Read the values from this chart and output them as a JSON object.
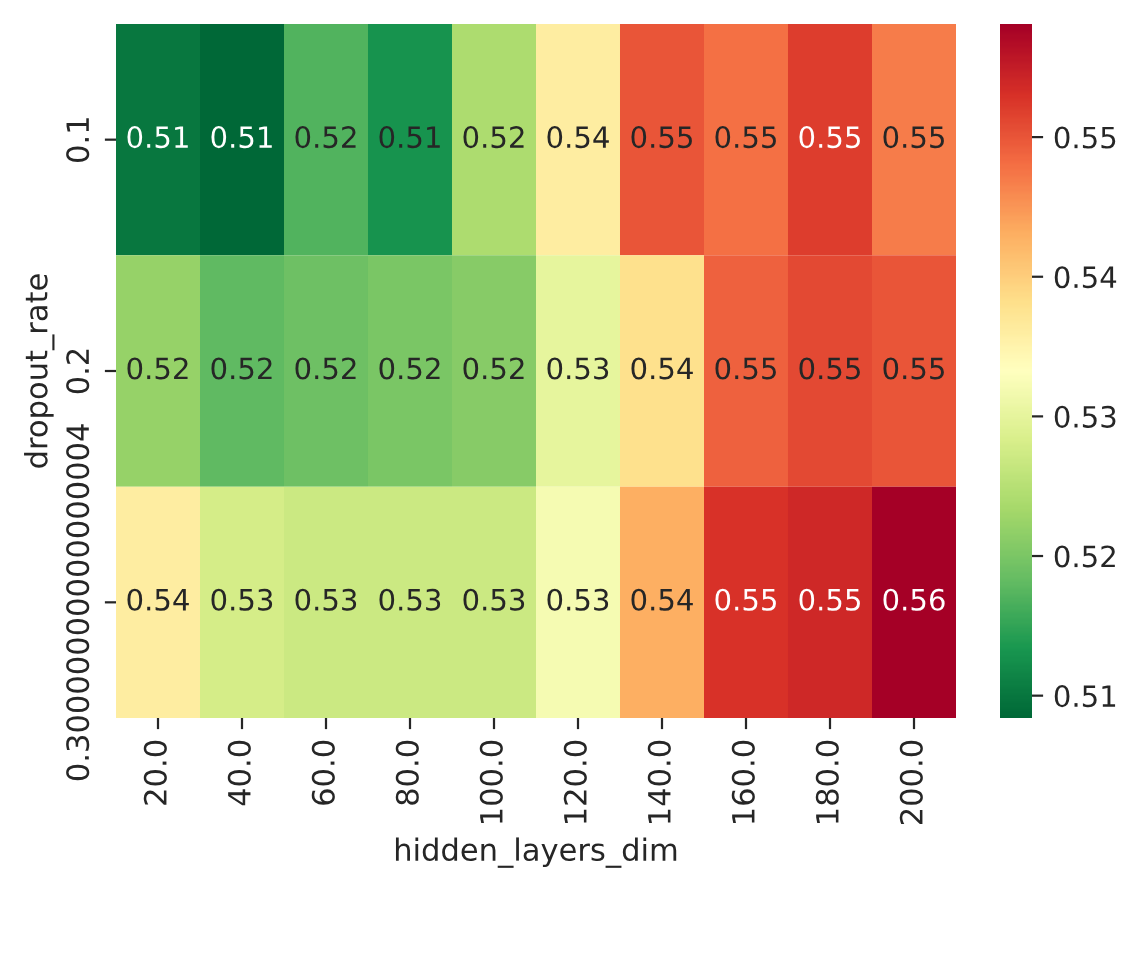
{
  "chart_data": {
    "type": "heatmap",
    "xlabel": "hidden_layers_dim",
    "ylabel": "dropout_rate",
    "categories": [
      "20.0",
      "40.0",
      "60.0",
      "80.0",
      "100.0",
      "120.0",
      "140.0",
      "160.0",
      "180.0",
      "200.0"
    ],
    "y_categories": [
      "0.1",
      "0.2",
      "0.30000000000000004"
    ],
    "cells": [
      [
        0.51,
        0.5084,
        0.517,
        0.513,
        0.524,
        0.536,
        0.55,
        0.548,
        0.552,
        0.547
      ],
      [
        0.522,
        0.518,
        0.519,
        0.52,
        0.521,
        0.53,
        0.538,
        0.549,
        0.551,
        0.55
      ],
      [
        0.536,
        0.528,
        0.527,
        0.527,
        0.527,
        0.532,
        0.543,
        0.553,
        0.554,
        0.5581
      ]
    ],
    "cell_labels": [
      [
        "0.51",
        "0.51",
        "0.52",
        "0.51",
        "0.52",
        "0.54",
        "0.55",
        "0.55",
        "0.55",
        "0.55"
      ],
      [
        "0.52",
        "0.52",
        "0.52",
        "0.52",
        "0.52",
        "0.53",
        "0.54",
        "0.55",
        "0.55",
        "0.55"
      ],
      [
        "0.54",
        "0.53",
        "0.53",
        "0.53",
        "0.53",
        "0.53",
        "0.54",
        "0.55",
        "0.55",
        "0.56"
      ]
    ],
    "clim": [
      0.5084,
      0.5581
    ],
    "cticks": [
      0.51,
      0.52,
      0.53,
      0.54,
      0.55
    ]
  }
}
